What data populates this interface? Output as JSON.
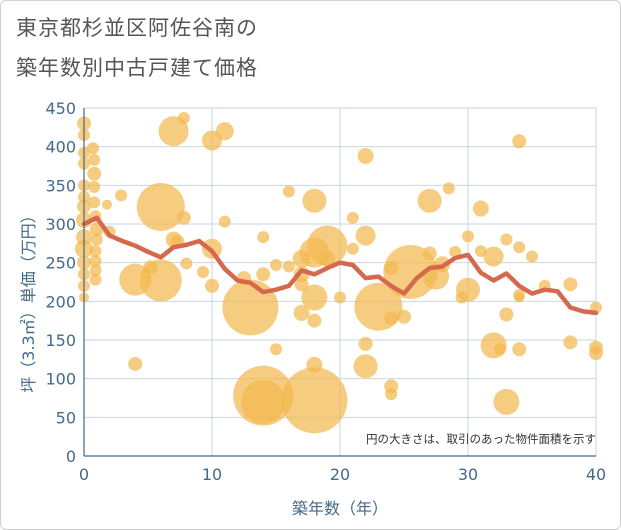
{
  "title_line1": "東京都杉並区阿佐谷南の",
  "title_line2": "築年数別中古戸建て価格",
  "note": "円の大きさは、取引のあった物件面積を示す",
  "colors": {
    "bubble": "#f2b84f",
    "line": "#d4694e",
    "grid": "#c9d6e3",
    "axis": "#44698a"
  },
  "chart_data": {
    "type": "scatter",
    "title": "東京都杉並区阿佐谷南の築年数別中古戸建て価格",
    "xlabel": "築年数（年）",
    "ylabel": "坪（3.3㎡）単価（万円）",
    "xlim": [
      0,
      40
    ],
    "ylim": [
      0,
      450
    ],
    "xticks": [
      0,
      10,
      20,
      30,
      40
    ],
    "yticks": [
      0,
      50,
      100,
      150,
      200,
      250,
      300,
      350,
      400,
      450
    ],
    "grid": true,
    "bubbles": [
      {
        "x": 0.0,
        "y": 430,
        "r": 7
      },
      {
        "x": 0.0,
        "y": 415,
        "r": 6
      },
      {
        "x": 0.0,
        "y": 392,
        "r": 6
      },
      {
        "x": 0.0,
        "y": 378,
        "r": 6
      },
      {
        "x": 0.0,
        "y": 350,
        "r": 6
      },
      {
        "x": 0.0,
        "y": 335,
        "r": 6
      },
      {
        "x": 0.0,
        "y": 323,
        "r": 7
      },
      {
        "x": 0.0,
        "y": 305,
        "r": 8
      },
      {
        "x": 0.0,
        "y": 283,
        "r": 8
      },
      {
        "x": 0.0,
        "y": 268,
        "r": 9
      },
      {
        "x": 0.0,
        "y": 250,
        "r": 7
      },
      {
        "x": 0.0,
        "y": 235,
        "r": 6
      },
      {
        "x": 0.0,
        "y": 220,
        "r": 6
      },
      {
        "x": 0.0,
        "y": 205,
        "r": 5
      },
      {
        "x": 0.7,
        "y": 398,
        "r": 6
      },
      {
        "x": 0.8,
        "y": 383,
        "r": 6
      },
      {
        "x": 0.8,
        "y": 365,
        "r": 7
      },
      {
        "x": 0.8,
        "y": 348,
        "r": 6
      },
      {
        "x": 0.8,
        "y": 328,
        "r": 6
      },
      {
        "x": 0.9,
        "y": 310,
        "r": 6
      },
      {
        "x": 1.0,
        "y": 293,
        "r": 7
      },
      {
        "x": 1.0,
        "y": 280,
        "r": 6
      },
      {
        "x": 0.9,
        "y": 265,
        "r": 6
      },
      {
        "x": 0.9,
        "y": 252,
        "r": 6
      },
      {
        "x": 0.9,
        "y": 240,
        "r": 6
      },
      {
        "x": 0.9,
        "y": 228,
        "r": 6
      },
      {
        "x": 1.8,
        "y": 325,
        "r": 5
      },
      {
        "x": 2.0,
        "y": 290,
        "r": 6
      },
      {
        "x": 2.9,
        "y": 337,
        "r": 6
      },
      {
        "x": 4.0,
        "y": 228,
        "r": 16
      },
      {
        "x": 4.0,
        "y": 119,
        "r": 7
      },
      {
        "x": 5.2,
        "y": 244,
        "r": 7
      },
      {
        "x": 6.0,
        "y": 322,
        "r": 24
      },
      {
        "x": 6.0,
        "y": 227,
        "r": 21
      },
      {
        "x": 7.0,
        "y": 420,
        "r": 15
      },
      {
        "x": 7.0,
        "y": 280,
        "r": 8
      },
      {
        "x": 7.3,
        "y": 277,
        "r": 7
      },
      {
        "x": 7.8,
        "y": 437,
        "r": 6
      },
      {
        "x": 7.8,
        "y": 308,
        "r": 7
      },
      {
        "x": 8.0,
        "y": 249,
        "r": 6
      },
      {
        "x": 9.3,
        "y": 238,
        "r": 6
      },
      {
        "x": 10.0,
        "y": 408,
        "r": 10
      },
      {
        "x": 10.0,
        "y": 268,
        "r": 10
      },
      {
        "x": 10.0,
        "y": 220,
        "r": 7
      },
      {
        "x": 11.0,
        "y": 420,
        "r": 9
      },
      {
        "x": 11.0,
        "y": 303,
        "r": 6
      },
      {
        "x": 12.5,
        "y": 230,
        "r": 7
      },
      {
        "x": 13.0,
        "y": 192,
        "r": 28
      },
      {
        "x": 14.0,
        "y": 283,
        "r": 6
      },
      {
        "x": 14.0,
        "y": 235,
        "r": 7
      },
      {
        "x": 14.0,
        "y": 78,
        "r": 30
      },
      {
        "x": 14.0,
        "y": 70,
        "r": 22
      },
      {
        "x": 15.0,
        "y": 247,
        "r": 6
      },
      {
        "x": 15.0,
        "y": 138,
        "r": 6
      },
      {
        "x": 16.0,
        "y": 342,
        "r": 6
      },
      {
        "x": 16.0,
        "y": 245,
        "r": 6
      },
      {
        "x": 17.0,
        "y": 255,
        "r": 9
      },
      {
        "x": 17.0,
        "y": 235,
        "r": 8
      },
      {
        "x": 17.0,
        "y": 222,
        "r": 7
      },
      {
        "x": 17.0,
        "y": 185,
        "r": 8
      },
      {
        "x": 18.0,
        "y": 330,
        "r": 12
      },
      {
        "x": 18.0,
        "y": 263,
        "r": 15
      },
      {
        "x": 18.0,
        "y": 205,
        "r": 13
      },
      {
        "x": 18.0,
        "y": 175,
        "r": 7
      },
      {
        "x": 18.0,
        "y": 118,
        "r": 8
      },
      {
        "x": 18.0,
        "y": 72,
        "r": 33
      },
      {
        "x": 19.0,
        "y": 272,
        "r": 20
      },
      {
        "x": 19.0,
        "y": 255,
        "r": 8
      },
      {
        "x": 20.0,
        "y": 205,
        "r": 6
      },
      {
        "x": 21.0,
        "y": 308,
        "r": 6
      },
      {
        "x": 21.0,
        "y": 268,
        "r": 6
      },
      {
        "x": 22.0,
        "y": 388,
        "r": 8
      },
      {
        "x": 22.0,
        "y": 285,
        "r": 10
      },
      {
        "x": 22.0,
        "y": 145,
        "r": 7
      },
      {
        "x": 22.0,
        "y": 116,
        "r": 12
      },
      {
        "x": 23.0,
        "y": 193,
        "r": 24
      },
      {
        "x": 24.0,
        "y": 243,
        "r": 7
      },
      {
        "x": 24.0,
        "y": 178,
        "r": 7
      },
      {
        "x": 24.0,
        "y": 90,
        "r": 7
      },
      {
        "x": 24.0,
        "y": 80,
        "r": 6
      },
      {
        "x": 25.0,
        "y": 180,
        "r": 7
      },
      {
        "x": 25.5,
        "y": 238,
        "r": 27
      },
      {
        "x": 27.0,
        "y": 330,
        "r": 12
      },
      {
        "x": 27.0,
        "y": 262,
        "r": 7
      },
      {
        "x": 27.5,
        "y": 232,
        "r": 13
      },
      {
        "x": 28.0,
        "y": 248,
        "r": 8
      },
      {
        "x": 28.5,
        "y": 346,
        "r": 6
      },
      {
        "x": 29.0,
        "y": 264,
        "r": 6
      },
      {
        "x": 29.5,
        "y": 205,
        "r": 6
      },
      {
        "x": 30.0,
        "y": 284,
        "r": 6
      },
      {
        "x": 30.0,
        "y": 215,
        "r": 12
      },
      {
        "x": 31.0,
        "y": 320,
        "r": 8
      },
      {
        "x": 31.0,
        "y": 265,
        "r": 6
      },
      {
        "x": 32.0,
        "y": 258,
        "r": 10
      },
      {
        "x": 32.0,
        "y": 143,
        "r": 13
      },
      {
        "x": 32.5,
        "y": 138,
        "r": 6
      },
      {
        "x": 33.0,
        "y": 280,
        "r": 6
      },
      {
        "x": 33.0,
        "y": 183,
        "r": 7
      },
      {
        "x": 33.0,
        "y": 70,
        "r": 13
      },
      {
        "x": 34.0,
        "y": 407,
        "r": 7
      },
      {
        "x": 34.0,
        "y": 270,
        "r": 6
      },
      {
        "x": 34.0,
        "y": 208,
        "r": 6
      },
      {
        "x": 34.0,
        "y": 205,
        "r": 5
      },
      {
        "x": 34.0,
        "y": 138,
        "r": 7
      },
      {
        "x": 35.0,
        "y": 258,
        "r": 6
      },
      {
        "x": 36.0,
        "y": 220,
        "r": 6
      },
      {
        "x": 38.0,
        "y": 222,
        "r": 7
      },
      {
        "x": 38.0,
        "y": 147,
        "r": 7
      },
      {
        "x": 40.0,
        "y": 192,
        "r": 6
      },
      {
        "x": 40.0,
        "y": 140,
        "r": 7
      },
      {
        "x": 40.0,
        "y": 133,
        "r": 7
      }
    ],
    "trend": [
      {
        "x": 0,
        "y": 300
      },
      {
        "x": 1,
        "y": 308
      },
      {
        "x": 2,
        "y": 285
      },
      {
        "x": 3,
        "y": 278
      },
      {
        "x": 4,
        "y": 272
      },
      {
        "x": 5,
        "y": 264
      },
      {
        "x": 6,
        "y": 257
      },
      {
        "x": 7,
        "y": 270
      },
      {
        "x": 8,
        "y": 273
      },
      {
        "x": 9,
        "y": 278
      },
      {
        "x": 10,
        "y": 265
      },
      {
        "x": 11,
        "y": 242
      },
      {
        "x": 12,
        "y": 227
      },
      {
        "x": 13,
        "y": 224
      },
      {
        "x": 14,
        "y": 212
      },
      {
        "x": 15,
        "y": 215
      },
      {
        "x": 16,
        "y": 220
      },
      {
        "x": 17,
        "y": 240
      },
      {
        "x": 18,
        "y": 235
      },
      {
        "x": 19,
        "y": 243
      },
      {
        "x": 20,
        "y": 250
      },
      {
        "x": 21,
        "y": 247
      },
      {
        "x": 22,
        "y": 230
      },
      {
        "x": 23,
        "y": 232
      },
      {
        "x": 24,
        "y": 220
      },
      {
        "x": 25,
        "y": 210
      },
      {
        "x": 26,
        "y": 230
      },
      {
        "x": 27,
        "y": 243
      },
      {
        "x": 28,
        "y": 245
      },
      {
        "x": 29,
        "y": 256
      },
      {
        "x": 30,
        "y": 260
      },
      {
        "x": 31,
        "y": 237
      },
      {
        "x": 32,
        "y": 227
      },
      {
        "x": 33,
        "y": 236
      },
      {
        "x": 34,
        "y": 220
      },
      {
        "x": 35,
        "y": 210
      },
      {
        "x": 36,
        "y": 215
      },
      {
        "x": 37,
        "y": 213
      },
      {
        "x": 38,
        "y": 192
      },
      {
        "x": 39,
        "y": 187
      },
      {
        "x": 40,
        "y": 185
      }
    ]
  }
}
